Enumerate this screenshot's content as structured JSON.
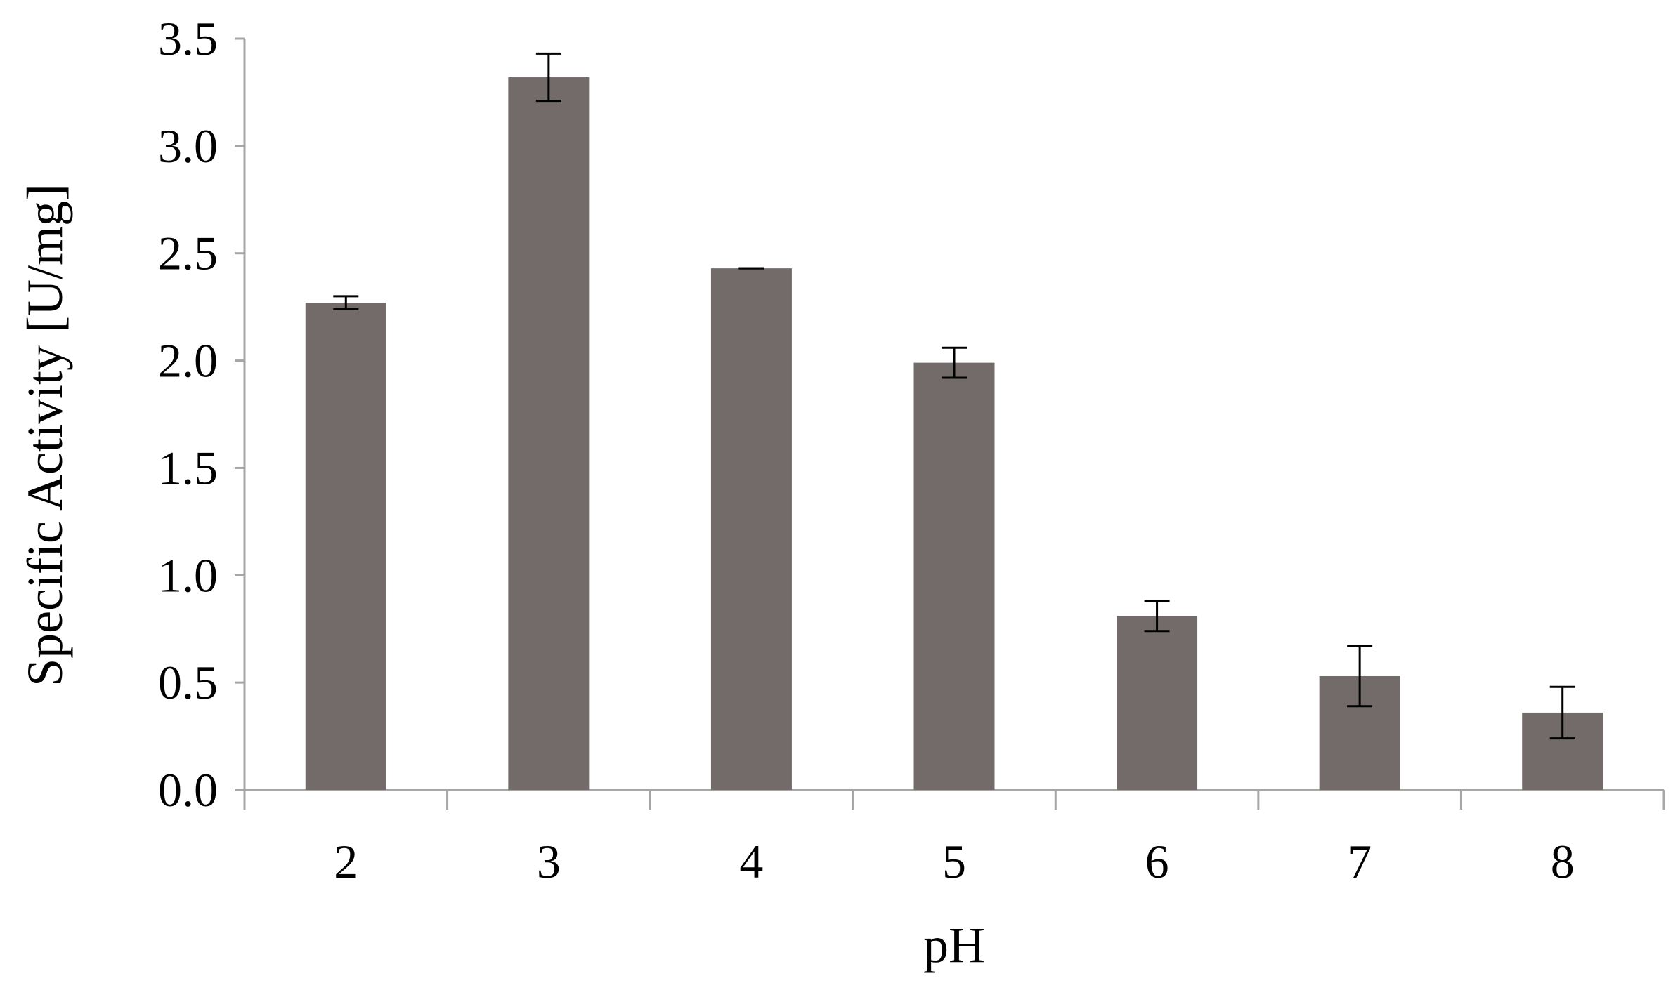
{
  "chart_data": {
    "type": "bar",
    "title": "",
    "xlabel": "pH",
    "ylabel": "Specific Activity [U/mg]",
    "categories": [
      "2",
      "3",
      "4",
      "5",
      "6",
      "7",
      "8"
    ],
    "series": [
      {
        "values": [
          2.27,
          3.32,
          2.43,
          1.99,
          0.81,
          0.53,
          0.36
        ],
        "error": [
          0.03,
          0.11,
          0.0,
          0.07,
          0.07,
          0.14,
          0.12
        ]
      }
    ],
    "ylim": [
      0,
      3.5
    ],
    "yticks": [
      "0.0",
      "0.5",
      "1.0",
      "1.5",
      "2.0",
      "2.5",
      "3.0",
      "3.5"
    ],
    "grid": false,
    "legend": "none",
    "colors": {
      "bar": "#736b69",
      "axis": "#a6a6a6",
      "error_bar": "#000000",
      "text": "#000000"
    }
  }
}
